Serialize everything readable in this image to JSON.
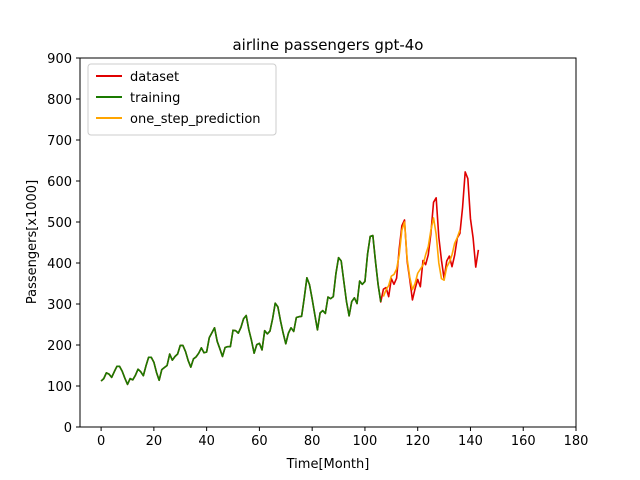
{
  "chart_data": {
    "type": "line",
    "title": "airline passengers gpt-4o",
    "xlabel": "Time[Month]",
    "ylabel": "Passengers[x1000]",
    "xlim": [
      -8,
      180
    ],
    "ylim": [
      0,
      900
    ],
    "xticks": [
      0,
      20,
      40,
      60,
      80,
      100,
      120,
      140,
      160,
      180
    ],
    "yticks": [
      0,
      100,
      200,
      300,
      400,
      500,
      600,
      700,
      800,
      900
    ],
    "grid": false,
    "legend_position": "upper-left",
    "series": [
      {
        "name": "dataset",
        "color": "#e00000",
        "x_start": 0,
        "values": [
          112,
          118,
          132,
          129,
          121,
          135,
          148,
          148,
          136,
          119,
          104,
          118,
          115,
          126,
          141,
          135,
          125,
          149,
          170,
          170,
          158,
          133,
          114,
          140,
          145,
          150,
          178,
          163,
          172,
          178,
          199,
          199,
          184,
          162,
          146,
          166,
          171,
          180,
          193,
          181,
          183,
          218,
          230,
          242,
          209,
          191,
          172,
          194,
          196,
          196,
          236,
          235,
          229,
          243,
          264,
          272,
          237,
          211,
          180,
          201,
          204,
          188,
          235,
          227,
          234,
          264,
          302,
          293,
          259,
          229,
          203,
          229,
          242,
          233,
          267,
          269,
          270,
          315,
          364,
          347,
          312,
          274,
          237,
          278,
          284,
          277,
          317,
          313,
          318,
          374,
          413,
          405,
          355,
          306,
          271,
          306,
          315,
          301,
          356,
          348,
          355,
          422,
          465,
          467,
          404,
          347,
          305,
          336,
          340,
          318,
          362,
          348,
          363,
          435,
          491,
          505,
          404,
          359,
          310,
          337,
          360,
          342,
          406,
          396,
          420,
          472,
          548,
          559,
          463,
          407,
          362,
          405,
          417,
          391,
          419,
          461,
          472,
          535,
          622,
          606,
          508,
          461,
          390,
          432
        ]
      },
      {
        "name": "training",
        "color": "#1a7a00",
        "x_start": 0,
        "values": [
          112,
          118,
          132,
          129,
          121,
          135,
          148,
          148,
          136,
          119,
          104,
          118,
          115,
          126,
          141,
          135,
          125,
          149,
          170,
          170,
          158,
          133,
          114,
          140,
          145,
          150,
          178,
          163,
          172,
          178,
          199,
          199,
          184,
          162,
          146,
          166,
          171,
          180,
          193,
          181,
          183,
          218,
          230,
          242,
          209,
          191,
          172,
          194,
          196,
          196,
          236,
          235,
          229,
          243,
          264,
          272,
          237,
          211,
          180,
          201,
          204,
          188,
          235,
          227,
          234,
          264,
          302,
          293,
          259,
          229,
          203,
          229,
          242,
          233,
          267,
          269,
          270,
          315,
          364,
          347,
          312,
          274,
          237,
          278,
          284,
          277,
          317,
          313,
          318,
          374,
          413,
          405,
          355,
          306,
          271,
          306,
          315,
          301,
          356,
          348,
          355,
          422,
          465,
          467,
          404,
          347,
          305
        ]
      },
      {
        "name": "one_step_prediction",
        "color": "#ffa500",
        "x_start": 107,
        "values": [
          318,
          335,
          345,
          368,
          372,
          385,
          420,
          480,
          500,
          410,
          365,
          335,
          350,
          375,
          385,
          395,
          420,
          440,
          480,
          510,
          470,
          400,
          362,
          358,
          390,
          402,
          420,
          448,
          462,
          480
        ]
      }
    ]
  }
}
